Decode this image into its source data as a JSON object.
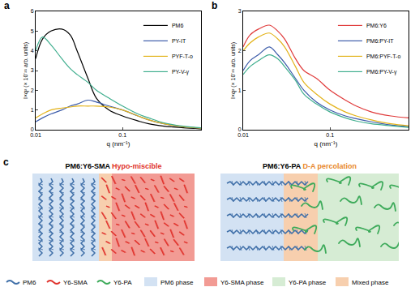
{
  "chart_data": [
    {
      "type": "line",
      "title": "a",
      "x_label": "q (nm⁻¹)",
      "y_label": "I×q² (× 10⁻²¹ arb. units)",
      "x": [
        0.01,
        0.012,
        0.015,
        0.02,
        0.025,
        0.03,
        0.04,
        0.05,
        0.07,
        0.1,
        0.15,
        0.2,
        0.3,
        0.5,
        0.8
      ],
      "series": [
        {
          "name": "PM6",
          "color": "#000000",
          "values": [
            3.6,
            4.6,
            5.0,
            5.1,
            4.8,
            4.0,
            2.6,
            1.6,
            1.0,
            0.7,
            0.45,
            0.3,
            0.18,
            0.1,
            0.05
          ]
        },
        {
          "name": "PY-IT",
          "color": "#3b5ba9",
          "values": [
            0.4,
            0.6,
            0.8,
            1.0,
            1.2,
            1.3,
            1.5,
            1.4,
            1.2,
            1.0,
            0.7,
            0.5,
            0.3,
            0.15,
            0.08
          ]
        },
        {
          "name": "PYF-T-o",
          "color": "#e3b31b",
          "values": [
            0.6,
            0.8,
            1.0,
            1.1,
            1.15,
            1.2,
            1.2,
            1.2,
            1.15,
            1.0,
            0.7,
            0.5,
            0.3,
            0.15,
            0.08
          ]
        },
        {
          "name": "PY-V-γ",
          "color": "#3fae8e",
          "values": [
            4.0,
            4.7,
            4.3,
            3.6,
            3.1,
            2.8,
            2.4,
            2.0,
            1.6,
            1.2,
            0.8,
            0.6,
            0.35,
            0.18,
            0.1
          ]
        }
      ],
      "log": "x",
      "xlim": [
        0.01,
        0.8
      ],
      "xticks": [
        0.01,
        0.1
      ],
      "ylim": [
        0,
        6
      ],
      "yticks": [
        0,
        1,
        2,
        3,
        4,
        5,
        6
      ],
      "grid": false,
      "legend": "top right",
      "line_style": "solid"
    },
    {
      "type": "line",
      "title": "b",
      "x_label": "q (nm⁻¹)",
      "y_label": "I×q² (× 10⁻²¹ arb. units)",
      "x": [
        0.01,
        0.012,
        0.015,
        0.02,
        0.025,
        0.03,
        0.04,
        0.05,
        0.07,
        0.1,
        0.15,
        0.2,
        0.3,
        0.5,
        0.8
      ],
      "series": [
        {
          "name": "PM6:Y6",
          "color": "#e03a3a",
          "values": [
            2.1,
            2.4,
            2.55,
            2.65,
            2.5,
            2.3,
            1.8,
            1.5,
            1.3,
            1.0,
            0.75,
            0.6,
            0.45,
            0.35,
            0.3
          ]
        },
        {
          "name": "PM6:PY-IT",
          "color": "#3b5ba9",
          "values": [
            1.5,
            1.75,
            1.9,
            2.1,
            1.9,
            1.7,
            1.3,
            1.0,
            0.7,
            0.5,
            0.35,
            0.28,
            0.2,
            0.12,
            0.08
          ]
        },
        {
          "name": "PM6:PYF-T-o",
          "color": "#e3b31b",
          "values": [
            2.0,
            2.2,
            2.35,
            2.45,
            2.3,
            2.1,
            1.6,
            1.2,
            0.9,
            0.65,
            0.45,
            0.35,
            0.25,
            0.15,
            0.1
          ]
        },
        {
          "name": "PM6:PY-V-γ",
          "color": "#3fae8e",
          "values": [
            1.4,
            1.6,
            1.75,
            1.9,
            1.8,
            1.6,
            1.25,
            0.9,
            0.65,
            0.45,
            0.3,
            0.22,
            0.15,
            0.1,
            0.06
          ]
        }
      ],
      "log": "x",
      "xlim": [
        0.01,
        0.8
      ],
      "xticks": [
        0.01,
        0.1
      ],
      "ylim": [
        0,
        3
      ],
      "yticks": [
        0,
        1,
        2,
        3
      ],
      "grid": false,
      "legend": "top right",
      "line_style": "solid"
    }
  ],
  "diagram": {
    "panel_label": "c",
    "left": {
      "title": "PM6:Y6-SMA",
      "tag": "Hypo-miscible",
      "tag_color": "#e0342e"
    },
    "right": {
      "title": "PM6:Y6-PA",
      "tag": "D-A percolation",
      "tag_color": "#e8872a"
    },
    "legend": [
      {
        "label": "PM6",
        "kind": "line",
        "color": "#3f6fa8"
      },
      {
        "label": "Y6-SMA",
        "kind": "line",
        "color": "#e0342e"
      },
      {
        "label": "Y6-PA",
        "kind": "line",
        "color": "#3daa5a"
      },
      {
        "label": "PM6 phase",
        "kind": "box",
        "color": "#d3e2f3"
      },
      {
        "label": "Y6-SMA phase",
        "kind": "box",
        "color": "#f29b94"
      },
      {
        "label": "Y6-PA phase",
        "kind": "box",
        "color": "#d6ecd4"
      },
      {
        "label": "Mixed phase",
        "kind": "box",
        "color": "#f7cfae"
      }
    ]
  }
}
